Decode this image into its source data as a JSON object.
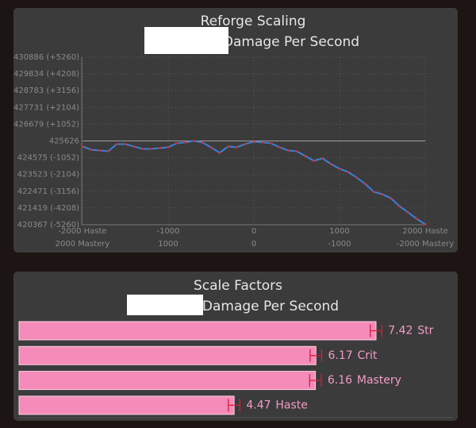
{
  "chart_data": [
    {
      "type": "line",
      "title": "Reforge Scaling",
      "subtitle": "Damage Per Second",
      "x": [
        -2000,
        -1900,
        -1800,
        -1700,
        -1600,
        -1500,
        -1400,
        -1300,
        -1200,
        -1100,
        -1000,
        -900,
        -800,
        -700,
        -600,
        -500,
        -400,
        -300,
        -200,
        -100,
        0,
        100,
        200,
        300,
        400,
        500,
        600,
        700,
        800,
        900,
        1000,
        1100,
        1200,
        1300,
        1400,
        1500,
        1600,
        1700,
        1800,
        1900,
        2000
      ],
      "series": [
        {
          "color": "#3d7fd9",
          "marker_color": "#e03030",
          "values": [
            425280,
            425080,
            425030,
            424980,
            425430,
            425430,
            425280,
            425130,
            425130,
            425180,
            425230,
            425480,
            425530,
            425630,
            425530,
            425230,
            424880,
            425280,
            425230,
            425430,
            425580,
            425530,
            425480,
            425230,
            425030,
            424980,
            424680,
            424380,
            424530,
            424180,
            423880,
            423680,
            423330,
            422930,
            422430,
            422280,
            422030,
            421530,
            421140,
            420740,
            420390
          ]
        }
      ],
      "xlim": [
        -2000,
        2000
      ],
      "xticks": [
        {
          "value": -2000,
          "label": "-2000 Haste"
        },
        -1000,
        0,
        1000,
        {
          "value": 2000,
          "label": "2000 Haste"
        }
      ],
      "x2lim": [
        2000,
        -2000
      ],
      "x2ticks": [
        {
          "value": 2000,
          "label": "2000 Mastery"
        },
        1000,
        0,
        -1000,
        {
          "value": -2000,
          "label": "-2000 Mastery"
        }
      ],
      "ylim": [
        420367,
        430886
      ],
      "yticks": [
        {
          "value": 420367,
          "label": "420367 (-5260)"
        },
        {
          "value": 421419,
          "label": "421419 (-4208)"
        },
        {
          "value": 422471,
          "label": "422471 (-3156)"
        },
        {
          "value": 423523,
          "label": "423523 (-2104)"
        },
        {
          "value": 424575,
          "label": "424575 (-1052)"
        },
        425626,
        {
          "value": 426679,
          "label": "426679 (+1052)"
        },
        {
          "value": 427731,
          "label": "427731 (+2104)"
        },
        {
          "value": 428783,
          "label": "428783 (+3156)"
        },
        {
          "value": 429834,
          "label": "429834 (+4208)"
        },
        {
          "value": 430886,
          "label": "430886 (+5260)"
        }
      ],
      "baseline": 425626,
      "grid": true
    },
    {
      "type": "bar",
      "orientation": "horizontal",
      "title": "Scale Factors",
      "subtitle": "Damage Per Second",
      "categories": [
        "Str",
        "Crit",
        "Mastery",
        "Haste"
      ],
      "values": [
        7.42,
        6.17,
        6.16,
        4.47
      ],
      "errors": [
        0.12,
        0.12,
        0.12,
        0.12
      ],
      "color": "#f58bb9",
      "error_color": "#d0203a"
    }
  ]
}
